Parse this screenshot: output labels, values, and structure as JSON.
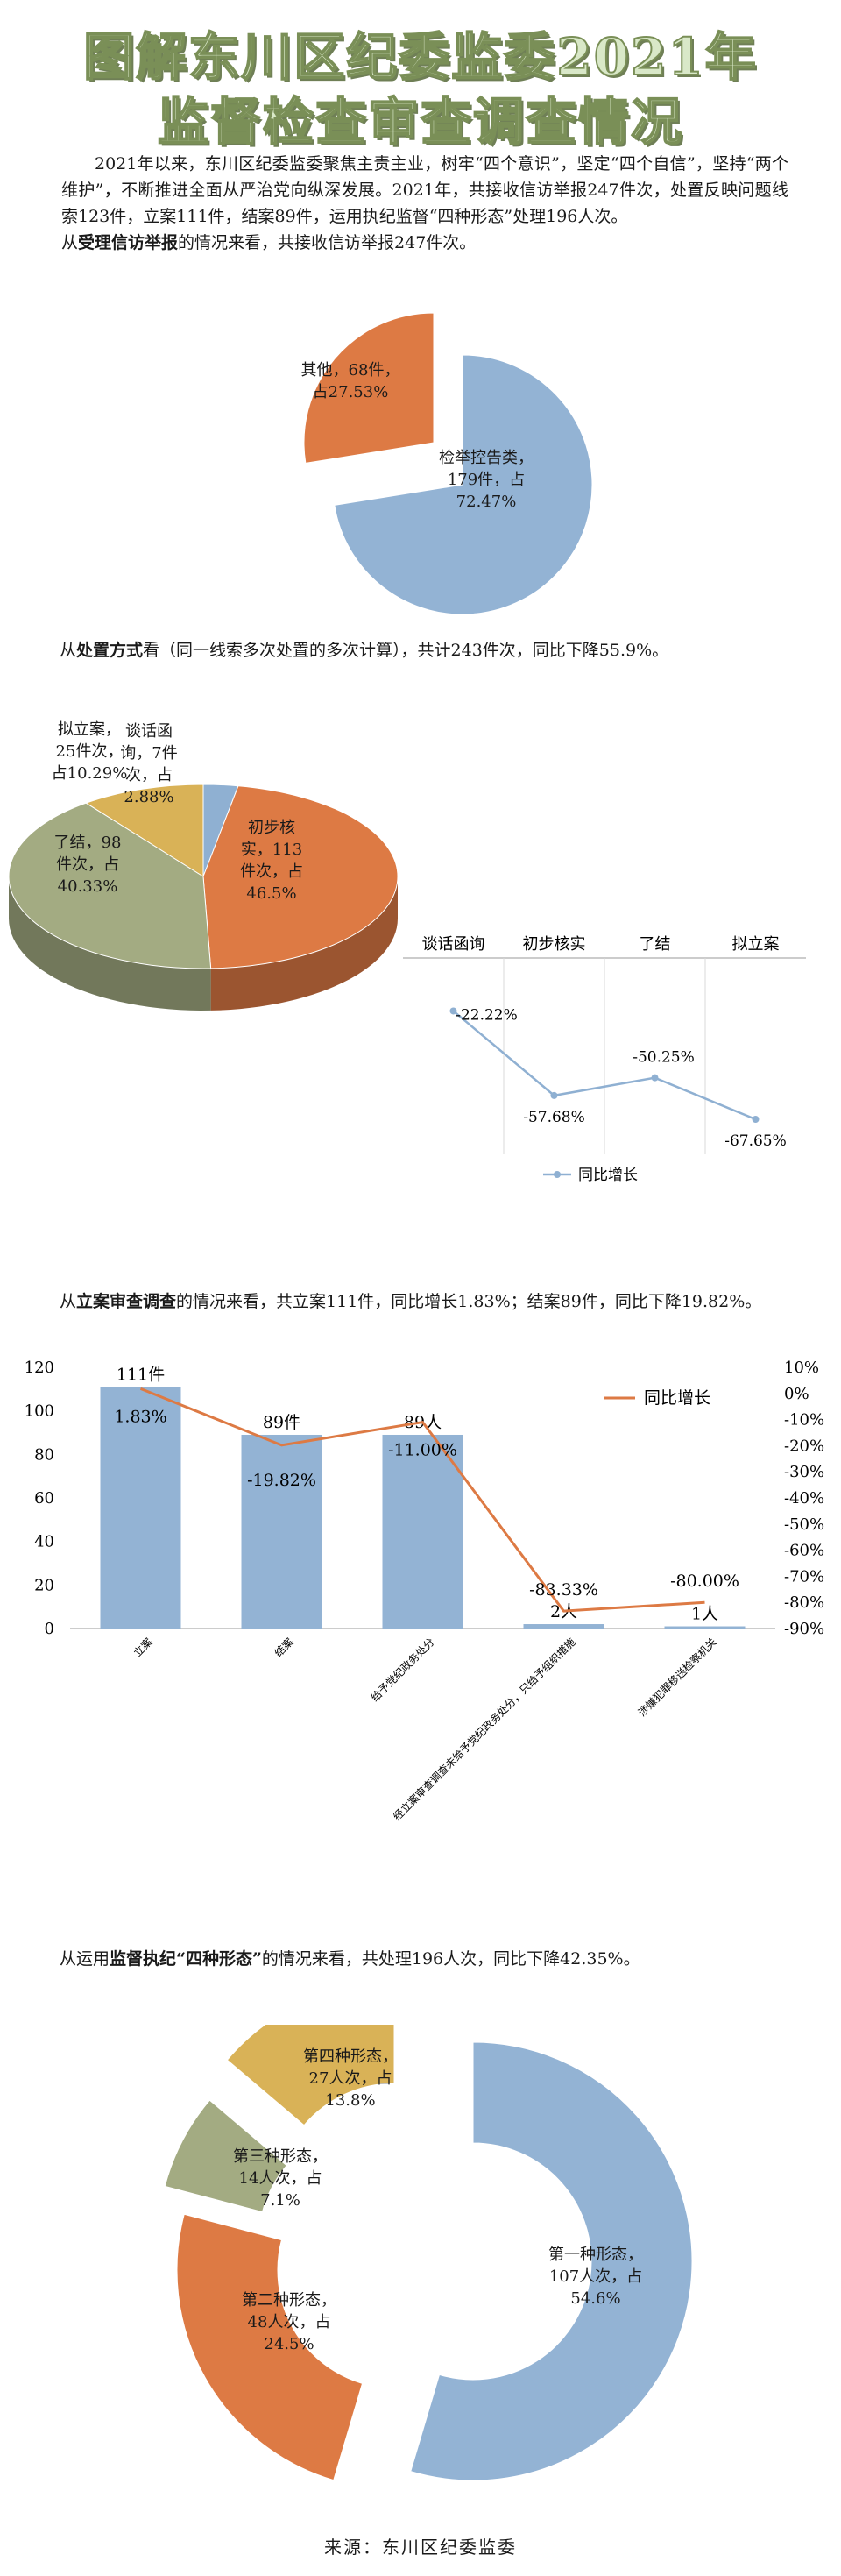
{
  "title_line1": "图解东川区纪委监委2021年",
  "title_line2": "监督检查审查调查情况",
  "intro": "2021年以来，东川区纪委监委聚焦主责主业，树牢“四个意识”，坚定“四个自信”，坚持“两个维护”，不断推进全面从严治党向纵深发展。2021年，共接收信访举报247件次，处置反映问题线索123件，立案111件，结案89件，运用执纪监督“四种形态”处理196人次。",
  "s1": {
    "pre": "从",
    "bold": "受理信访举报",
    "post": "的情况来看，共接收信访举报247件次。"
  },
  "s2": {
    "pre": "从",
    "bold": "处置方式",
    "post": "看（同一线索多次处置的多次计算），共计243件次，同比下降55.9%。"
  },
  "s3": {
    "pre": "从",
    "bold": "立案审查调查",
    "post": "的情况来看，共立案111件，同比增长1.83%；结案89件，同比下降19.82%。"
  },
  "s4": {
    "pre": "从运用",
    "bold": "监督执纪“四种形态”",
    "post": "的情况来看，共处理196人次，同比下降42.35%。"
  },
  "footer": "来源：东川区纪委监委",
  "chart_data": [
    {
      "type": "pie",
      "slices": [
        {
          "label": [
            "检举控告类，",
            "179件，占",
            "72.47%"
          ],
          "value": 72.47,
          "color": "#93b3d4"
        },
        {
          "label": [
            "其他，68件，",
            "占27.53%"
          ],
          "value": 27.53,
          "color": "#dd7a44"
        }
      ]
    },
    {
      "type": "pie",
      "slices": [
        {
          "label": [
            "谈话函",
            "询，7件",
            "次，占",
            "2.88%"
          ],
          "value": 2.88,
          "color": "#8fb0d2"
        },
        {
          "label": [
            "初步核",
            "实，113",
            "件次，占",
            "46.5%"
          ],
          "value": 46.5,
          "color": "#dd7a44"
        },
        {
          "label": [
            "了结，98",
            "件次，占",
            "40.33%"
          ],
          "value": 40.33,
          "color": "#a3ab82"
        },
        {
          "label": [
            "拟立案，",
            "25件次，",
            "占10.29%"
          ],
          "value": 10.29,
          "color": "#d9b257"
        }
      ]
    },
    {
      "type": "line",
      "categories": [
        "谈话函询",
        "初步核实",
        "了结",
        "拟立案"
      ],
      "series": [
        {
          "name": "同比增长",
          "values": [
            -22.22,
            -57.68,
            -50.25,
            -67.65
          ],
          "labels": [
            "-22.22%",
            "-57.68%",
            "-50.25%",
            "-67.65%"
          ],
          "color": "#8fb0d2"
        }
      ]
    },
    {
      "type": "bar",
      "categories": [
        "立案",
        "结案",
        "给予党纪政务处分",
        "经立案审查调查未给予党纪政务处分，只给予组织措施",
        "涉嫌犯罪移送检察机关"
      ],
      "values": [
        111,
        89,
        89,
        2,
        1
      ],
      "value_labels": [
        "111件",
        "89件",
        "89人",
        "2人",
        "1人"
      ],
      "ylim": [
        0,
        120
      ],
      "yticks": [
        "0",
        "20",
        "40",
        "60",
        "80",
        "100",
        "120"
      ],
      "series": [
        {
          "name": "同比增长",
          "values": [
            1.83,
            -19.82,
            -11.0,
            -83.33,
            -80.0
          ],
          "labels": [
            "1.83%",
            "-19.82%",
            "-11.00%",
            "-83.33%",
            "-80.00%"
          ],
          "color": "#dd7a44"
        }
      ],
      "y2lim": [
        -90,
        10
      ],
      "y2ticks": [
        "10%",
        "0%",
        "-10%",
        "-20%",
        "-30%",
        "-40%",
        "-50%",
        "-60%",
        "-70%",
        "-80%",
        "-90%"
      ],
      "bar_color": "#93b3d4"
    },
    {
      "type": "pie",
      "slices": [
        {
          "label": [
            "第一种形态，",
            "107人次，占",
            "54.6%"
          ],
          "value": 54.6,
          "color": "#93b3d4"
        },
        {
          "label": [
            "第二种形态，",
            "48人次，占",
            "24.5%"
          ],
          "value": 24.5,
          "color": "#dd7a44"
        },
        {
          "label": [
            "第三种形态，",
            "14人次，占",
            "7.1%"
          ],
          "value": 7.1,
          "color": "#a3ab82"
        },
        {
          "label": [
            "第四种形态，",
            "27人次，占",
            "13.8%"
          ],
          "value": 13.8,
          "color": "#d9b257"
        }
      ]
    }
  ]
}
